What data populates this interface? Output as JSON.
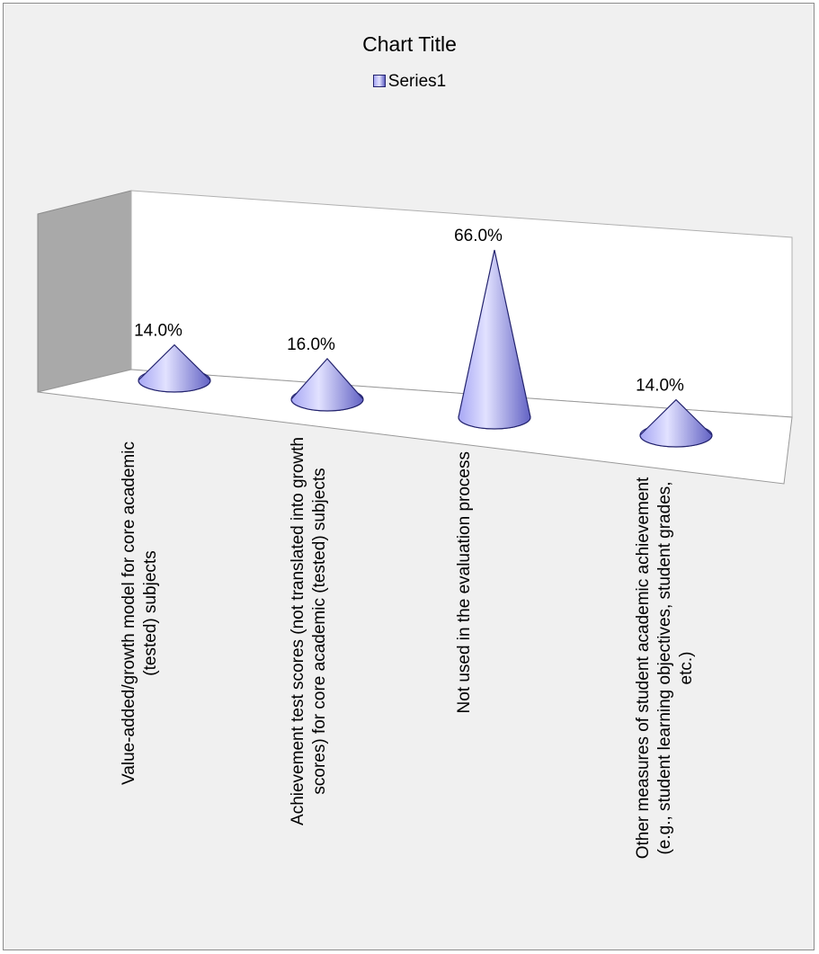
{
  "chart_data": {
    "type": "bar",
    "shape": "cone-3d",
    "title": "Chart Title",
    "legend": {
      "position": "top",
      "entries": [
        "Series1"
      ]
    },
    "categories": [
      "Value-added/growth model for core academic (tested) subjects",
      "Achievement test scores (not translated into growth scores) for core academic (tested) subjects",
      "Not used in the evaluation process",
      "Other measures of student academic achievement (e.g., student learning objectives, student grades, etc.)"
    ],
    "series": [
      {
        "name": "Series1",
        "values": [
          14.0,
          16.0,
          66.0,
          14.0
        ],
        "data_labels": [
          "14.0%",
          "16.0%",
          "66.0%",
          "14.0%"
        ]
      }
    ],
    "ylim": [
      0,
      100
    ],
    "grid": false
  },
  "colors": {
    "cone_light": "#e2e2ff",
    "cone_mid": "#a6a6f4",
    "cone_dark": "#6262c4",
    "cone_stroke": "#23236e",
    "back_wall": "#ffffff",
    "side_wall": "#a9a9a9",
    "floor": "#ffffff"
  }
}
